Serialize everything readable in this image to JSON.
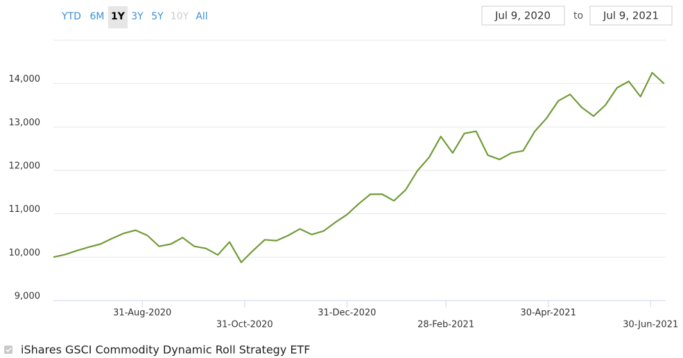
{
  "chart_data": {
    "type": "line",
    "range_selector": {
      "buttons": [
        "YTD",
        "6M",
        "1Y",
        "3Y",
        "5Y",
        "10Y",
        "All"
      ],
      "selected": "1Y",
      "disabled": [
        "10Y"
      ]
    },
    "date_range": {
      "from": "Jul 9, 2020",
      "separator": "to",
      "to": "Jul 9, 2021"
    },
    "x": [
      "2020-07-09",
      "2020-07-16",
      "2020-07-23",
      "2020-07-30",
      "2020-08-06",
      "2020-08-13",
      "2020-08-20",
      "2020-08-27",
      "2020-09-03",
      "2020-09-10",
      "2020-09-17",
      "2020-09-24",
      "2020-10-01",
      "2020-10-08",
      "2020-10-15",
      "2020-10-22",
      "2020-10-29",
      "2020-11-05",
      "2020-11-12",
      "2020-11-19",
      "2020-11-26",
      "2020-12-03",
      "2020-12-10",
      "2020-12-17",
      "2020-12-24",
      "2020-12-31",
      "2021-01-07",
      "2021-01-14",
      "2021-01-21",
      "2021-01-28",
      "2021-02-04",
      "2021-02-11",
      "2021-02-18",
      "2021-02-25",
      "2021-03-04",
      "2021-03-11",
      "2021-03-18",
      "2021-03-25",
      "2021-04-01",
      "2021-04-08",
      "2021-04-15",
      "2021-04-22",
      "2021-04-29",
      "2021-05-06",
      "2021-05-13",
      "2021-05-20",
      "2021-05-27",
      "2021-06-03",
      "2021-06-10",
      "2021-06-17",
      "2021-06-24",
      "2021-07-01",
      "2021-07-08"
    ],
    "series": [
      {
        "name": "iShares GSCI Commodity Dynamic Roll Strategy ETF",
        "color": "#6f9b36",
        "values": [
          10000,
          10060,
          10150,
          10230,
          10300,
          10430,
          10550,
          10620,
          10500,
          10250,
          10300,
          10450,
          10250,
          10200,
          10050,
          10350,
          9880,
          10150,
          10400,
          10380,
          10500,
          10650,
          10520,
          10600,
          10800,
          10980,
          11230,
          11450,
          11450,
          11300,
          11550,
          11990,
          12300,
          12780,
          12400,
          12850,
          12900,
          12350,
          12250,
          12400,
          12450,
          12900,
          13200,
          13600,
          13750,
          13450,
          13250,
          13500,
          13900,
          14050,
          13700,
          14250,
          14000
        ]
      }
    ],
    "xlim": [
      "2020-07-09",
      "2021-07-09"
    ],
    "xticks": [
      {
        "value": "2020-08-31",
        "label": "31-Aug-2020"
      },
      {
        "value": "2020-10-31",
        "label": "31-Oct-2020"
      },
      {
        "value": "2020-12-31",
        "label": "31-Dec-2020"
      },
      {
        "value": "2021-02-28",
        "label": "28-Feb-2021"
      },
      {
        "value": "2021-04-30",
        "label": "30-Apr-2021"
      },
      {
        "value": "2021-06-30",
        "label": "30-Jun-2021"
      }
    ],
    "ylim": [
      9000,
      15000
    ],
    "yticks": [
      {
        "value": 9000,
        "label": "9,000"
      },
      {
        "value": 10000,
        "label": "10,000"
      },
      {
        "value": 11000,
        "label": "11,000"
      },
      {
        "value": 12000,
        "label": "12,000"
      },
      {
        "value": 13000,
        "label": "13,000"
      },
      {
        "value": 14000,
        "label": "14,000"
      },
      15000
    ],
    "grid": true
  }
}
